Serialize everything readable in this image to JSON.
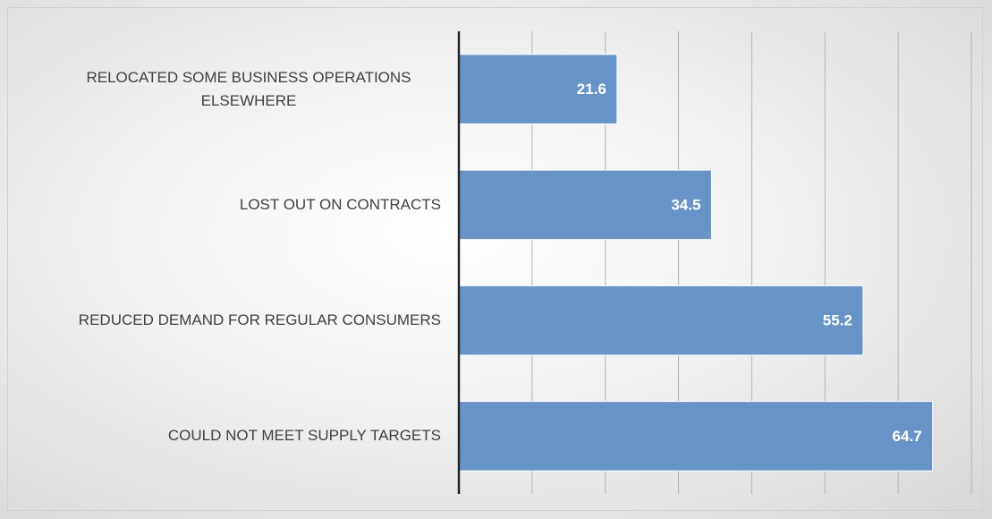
{
  "chart_data": {
    "type": "bar",
    "orientation": "horizontal",
    "categories": [
      "RELOCATED SOME BUSINESS OPERATIONS ELSEWHERE",
      "LOST OUT ON CONTRACTS",
      "REDUCED DEMAND FOR REGULAR CONSUMERS",
      "COULD NOT MEET SUPPLY TARGETS"
    ],
    "values": [
      21.6,
      34.5,
      55.2,
      64.7
    ],
    "color": "#6794c8",
    "xlim": [
      0,
      70
    ],
    "xticks": [
      0,
      10,
      20,
      30,
      40,
      50,
      60,
      70
    ],
    "grid": true
  }
}
